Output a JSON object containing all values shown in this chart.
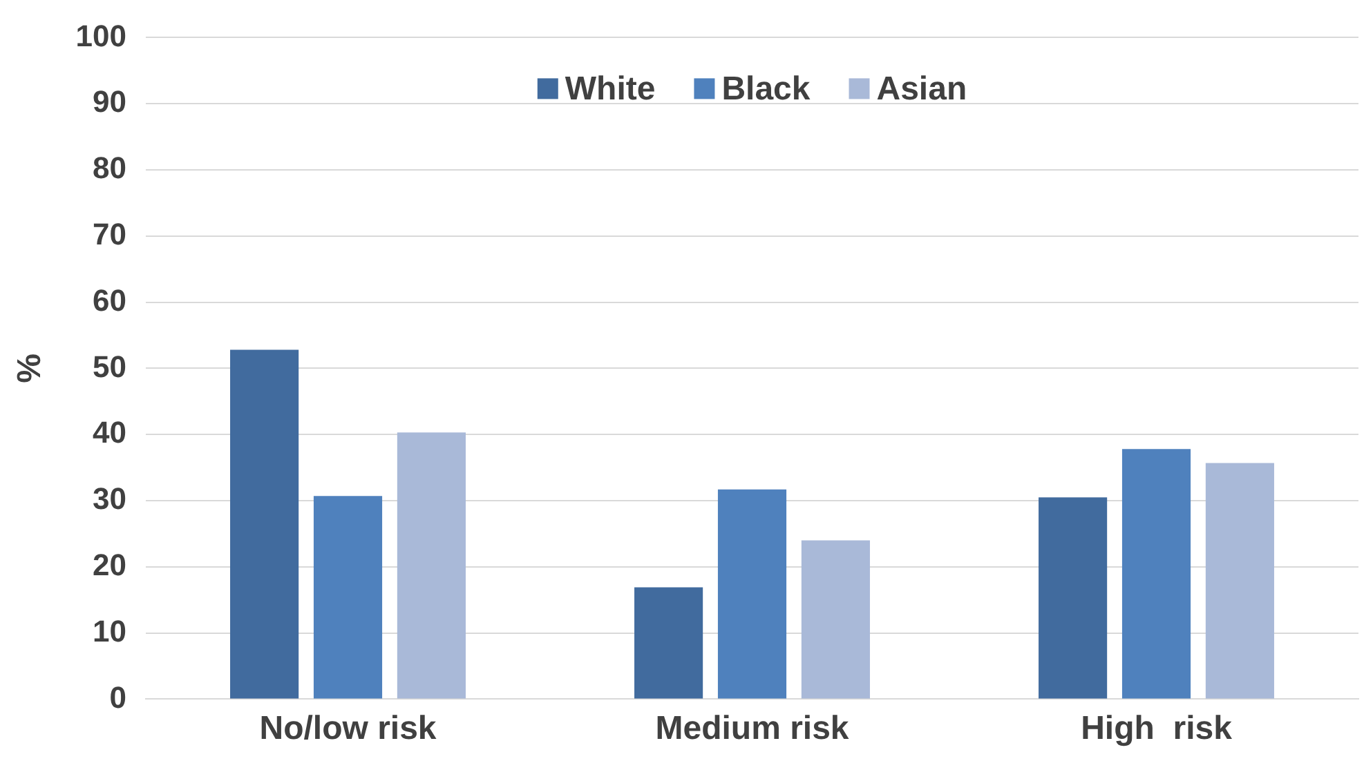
{
  "chart_data": {
    "type": "bar",
    "ylabel": "%",
    "categories": [
      "No/low risk",
      "Medium risk",
      "High  risk"
    ],
    "series": [
      {
        "name": "White",
        "color": "#416b9e",
        "values": [
          52.8,
          16.9,
          30.5
        ]
      },
      {
        "name": "Black",
        "color": "#4f81bd",
        "values": [
          30.7,
          31.7,
          37.8
        ]
      },
      {
        "name": "Asian",
        "color": "#a9b9d8",
        "values": [
          40.3,
          24.0,
          35.7
        ]
      }
    ],
    "ylim": [
      0,
      100
    ],
    "yticks": [
      0,
      10,
      20,
      30,
      40,
      50,
      60,
      70,
      80,
      90,
      100
    ],
    "grid": "y",
    "legend": "top"
  }
}
